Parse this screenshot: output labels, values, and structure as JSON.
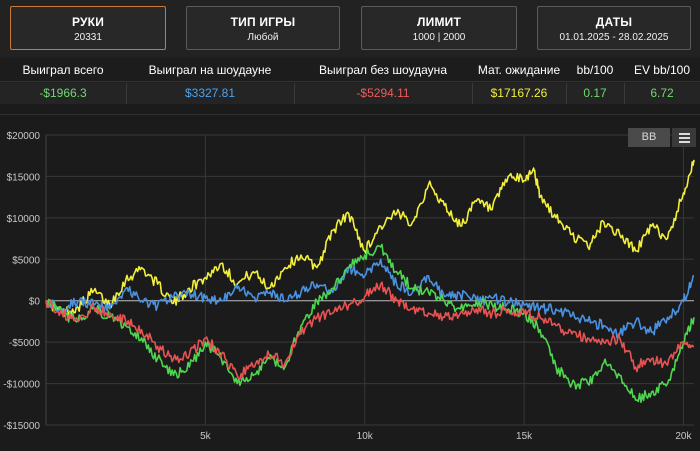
{
  "filters": [
    {
      "label": "РУКИ",
      "value": "20331"
    },
    {
      "label": "ТИП ИГРЫ",
      "value": "Любой"
    },
    {
      "label": "ЛИМИТ",
      "value": "1000 | 2000"
    },
    {
      "label": "ДАТЫ",
      "value": "01.01.2025 - 28.02.2025"
    }
  ],
  "stats": {
    "headers": [
      "Выиграл всего",
      "Выиграл на шоудауне",
      "Выиграл без шоудауна",
      "Мат. ожидание",
      "bb/100",
      "EV bb/100"
    ],
    "values": [
      "-$1966.3",
      "$3327.81",
      "-$5294.11",
      "$17167.26",
      "0.17",
      "6.72"
    ],
    "value_colors": [
      "#6fd96f",
      "#4aa3f0",
      "#ef5b5b",
      "#f1ef3f",
      "#6fd96f",
      "#6fd96f"
    ]
  },
  "chart_controls": {
    "unit_button": "BB",
    "menu_icon": "hamburger-menu-icon"
  },
  "chart_data": {
    "type": "line",
    "xlim": [
      0,
      20331
    ],
    "ylim": [
      -15000,
      20000
    ],
    "x_ticks": [
      5000,
      10000,
      15000,
      20000
    ],
    "x_tick_labels": [
      "5k",
      "10k",
      "15k",
      "20k"
    ],
    "y_ticks": [
      20000,
      15000,
      10000,
      5000,
      0,
      -5000,
      -10000,
      -15000
    ],
    "y_tick_labels": [
      "$20000",
      "$15000",
      "$10000",
      "$5000",
      "$0",
      "-$5000",
      "-$10000",
      "-$15000"
    ],
    "grid": true,
    "series": [
      {
        "key": "ev",
        "color": "#f2f03a",
        "points": [
          [
            0,
            0
          ],
          [
            500,
            -1500
          ],
          [
            1000,
            -800
          ],
          [
            1500,
            1200
          ],
          [
            2000,
            -500
          ],
          [
            2500,
            2500
          ],
          [
            3000,
            4000
          ],
          [
            3500,
            2000
          ],
          [
            4000,
            -300
          ],
          [
            4500,
            1500
          ],
          [
            5000,
            2800
          ],
          [
            5500,
            4500
          ],
          [
            6000,
            2000
          ],
          [
            6500,
            3500
          ],
          [
            7000,
            1500
          ],
          [
            7500,
            4000
          ],
          [
            8000,
            5500
          ],
          [
            8500,
            4000
          ],
          [
            9000,
            8500
          ],
          [
            9500,
            10500
          ],
          [
            10000,
            6000
          ],
          [
            10500,
            9000
          ],
          [
            11000,
            10500
          ],
          [
            11500,
            9500
          ],
          [
            12000,
            14000
          ],
          [
            12500,
            11500
          ],
          [
            13000,
            9000
          ],
          [
            13500,
            12000
          ],
          [
            14000,
            11000
          ],
          [
            14500,
            15000
          ],
          [
            15000,
            14500
          ],
          [
            15300,
            16000
          ],
          [
            15500,
            12500
          ],
          [
            16000,
            10000
          ],
          [
            16500,
            8000
          ],
          [
            17000,
            6500
          ],
          [
            17500,
            9500
          ],
          [
            18000,
            8000
          ],
          [
            18500,
            6000
          ],
          [
            19000,
            9000
          ],
          [
            19500,
            7500
          ],
          [
            20000,
            13000
          ],
          [
            20331,
            17000
          ]
        ]
      },
      {
        "key": "showdown",
        "color": "#4a92e0",
        "points": [
          [
            0,
            0
          ],
          [
            500,
            -1000
          ],
          [
            1000,
            0
          ],
          [
            1500,
            -500
          ],
          [
            2000,
            -1000
          ],
          [
            2500,
            1500
          ],
          [
            3000,
            0
          ],
          [
            3500,
            -600
          ],
          [
            4000,
            400
          ],
          [
            4500,
            1000
          ],
          [
            5000,
            300
          ],
          [
            5500,
            0
          ],
          [
            6000,
            1500
          ],
          [
            6500,
            400
          ],
          [
            7000,
            900
          ],
          [
            7500,
            0
          ],
          [
            8000,
            1000
          ],
          [
            8500,
            2000
          ],
          [
            9000,
            1000
          ],
          [
            9500,
            4000
          ],
          [
            10000,
            3000
          ],
          [
            10500,
            5000
          ],
          [
            11000,
            2000
          ],
          [
            11500,
            1000
          ],
          [
            12000,
            3000
          ],
          [
            12500,
            500
          ],
          [
            13000,
            700
          ],
          [
            13500,
            0
          ],
          [
            14000,
            300
          ],
          [
            14500,
            -200
          ],
          [
            15000,
            -500
          ],
          [
            15500,
            -1000
          ],
          [
            16000,
            -1000
          ],
          [
            16500,
            -1800
          ],
          [
            17000,
            -2500
          ],
          [
            17500,
            -3000
          ],
          [
            18000,
            -4000
          ],
          [
            18500,
            -2500
          ],
          [
            19000,
            -3800
          ],
          [
            19500,
            -2000
          ],
          [
            20000,
            -100
          ],
          [
            20331,
            3000
          ]
        ]
      },
      {
        "key": "total",
        "color": "#4fd64f",
        "points": [
          [
            0,
            0
          ],
          [
            500,
            -1500
          ],
          [
            1000,
            -2500
          ],
          [
            1500,
            -800
          ],
          [
            2000,
            -2000
          ],
          [
            2500,
            -3000
          ],
          [
            3000,
            -4500
          ],
          [
            3500,
            -7000
          ],
          [
            4000,
            -9000
          ],
          [
            4500,
            -8000
          ],
          [
            5000,
            -5000
          ],
          [
            5500,
            -7000
          ],
          [
            6000,
            -10000
          ],
          [
            6500,
            -9000
          ],
          [
            7000,
            -7000
          ],
          [
            7500,
            -8000
          ],
          [
            8000,
            -3000
          ],
          [
            8500,
            0
          ],
          [
            9000,
            1500
          ],
          [
            9500,
            4000
          ],
          [
            10000,
            5500
          ],
          [
            10500,
            6500
          ],
          [
            11000,
            3500
          ],
          [
            11500,
            1500
          ],
          [
            12000,
            1000
          ],
          [
            12500,
            0
          ],
          [
            13000,
            -1000
          ],
          [
            13500,
            0
          ],
          [
            14000,
            -500
          ],
          [
            14500,
            -1000
          ],
          [
            15000,
            -1500
          ],
          [
            15500,
            -3500
          ],
          [
            16000,
            -8000
          ],
          [
            16500,
            -10000
          ],
          [
            17000,
            -10000
          ],
          [
            17500,
            -7500
          ],
          [
            18000,
            -9000
          ],
          [
            18500,
            -12000
          ],
          [
            19000,
            -11000
          ],
          [
            19500,
            -10000
          ],
          [
            20000,
            -5000
          ],
          [
            20331,
            -2000
          ]
        ]
      },
      {
        "key": "no_showdown",
        "color": "#e85252",
        "points": [
          [
            0,
            0
          ],
          [
            500,
            -1500
          ],
          [
            1000,
            -2500
          ],
          [
            1500,
            -800
          ],
          [
            2000,
            -1500
          ],
          [
            2500,
            -2500
          ],
          [
            3000,
            -3500
          ],
          [
            3500,
            -5500
          ],
          [
            4000,
            -7000
          ],
          [
            4500,
            -6500
          ],
          [
            5000,
            -4500
          ],
          [
            5500,
            -6500
          ],
          [
            6000,
            -9000
          ],
          [
            6500,
            -8000
          ],
          [
            7000,
            -6500
          ],
          [
            7500,
            -7500
          ],
          [
            8000,
            -4000
          ],
          [
            8500,
            -2000
          ],
          [
            9000,
            -1500
          ],
          [
            9500,
            -500
          ],
          [
            10000,
            500
          ],
          [
            10500,
            2000
          ],
          [
            11000,
            0
          ],
          [
            11500,
            -1000
          ],
          [
            12000,
            -1500
          ],
          [
            12500,
            -2000
          ],
          [
            13000,
            -1500
          ],
          [
            13500,
            -1000
          ],
          [
            14000,
            -1500
          ],
          [
            14500,
            -1200
          ],
          [
            15000,
            -1500
          ],
          [
            15500,
            -2000
          ],
          [
            16000,
            -3000
          ],
          [
            16500,
            -4000
          ],
          [
            17000,
            -4500
          ],
          [
            17500,
            -5000
          ],
          [
            18000,
            -4500
          ],
          [
            18500,
            -8000
          ],
          [
            19000,
            -7000
          ],
          [
            19500,
            -7800
          ],
          [
            20000,
            -5000
          ],
          [
            20331,
            -5500
          ]
        ]
      }
    ]
  }
}
